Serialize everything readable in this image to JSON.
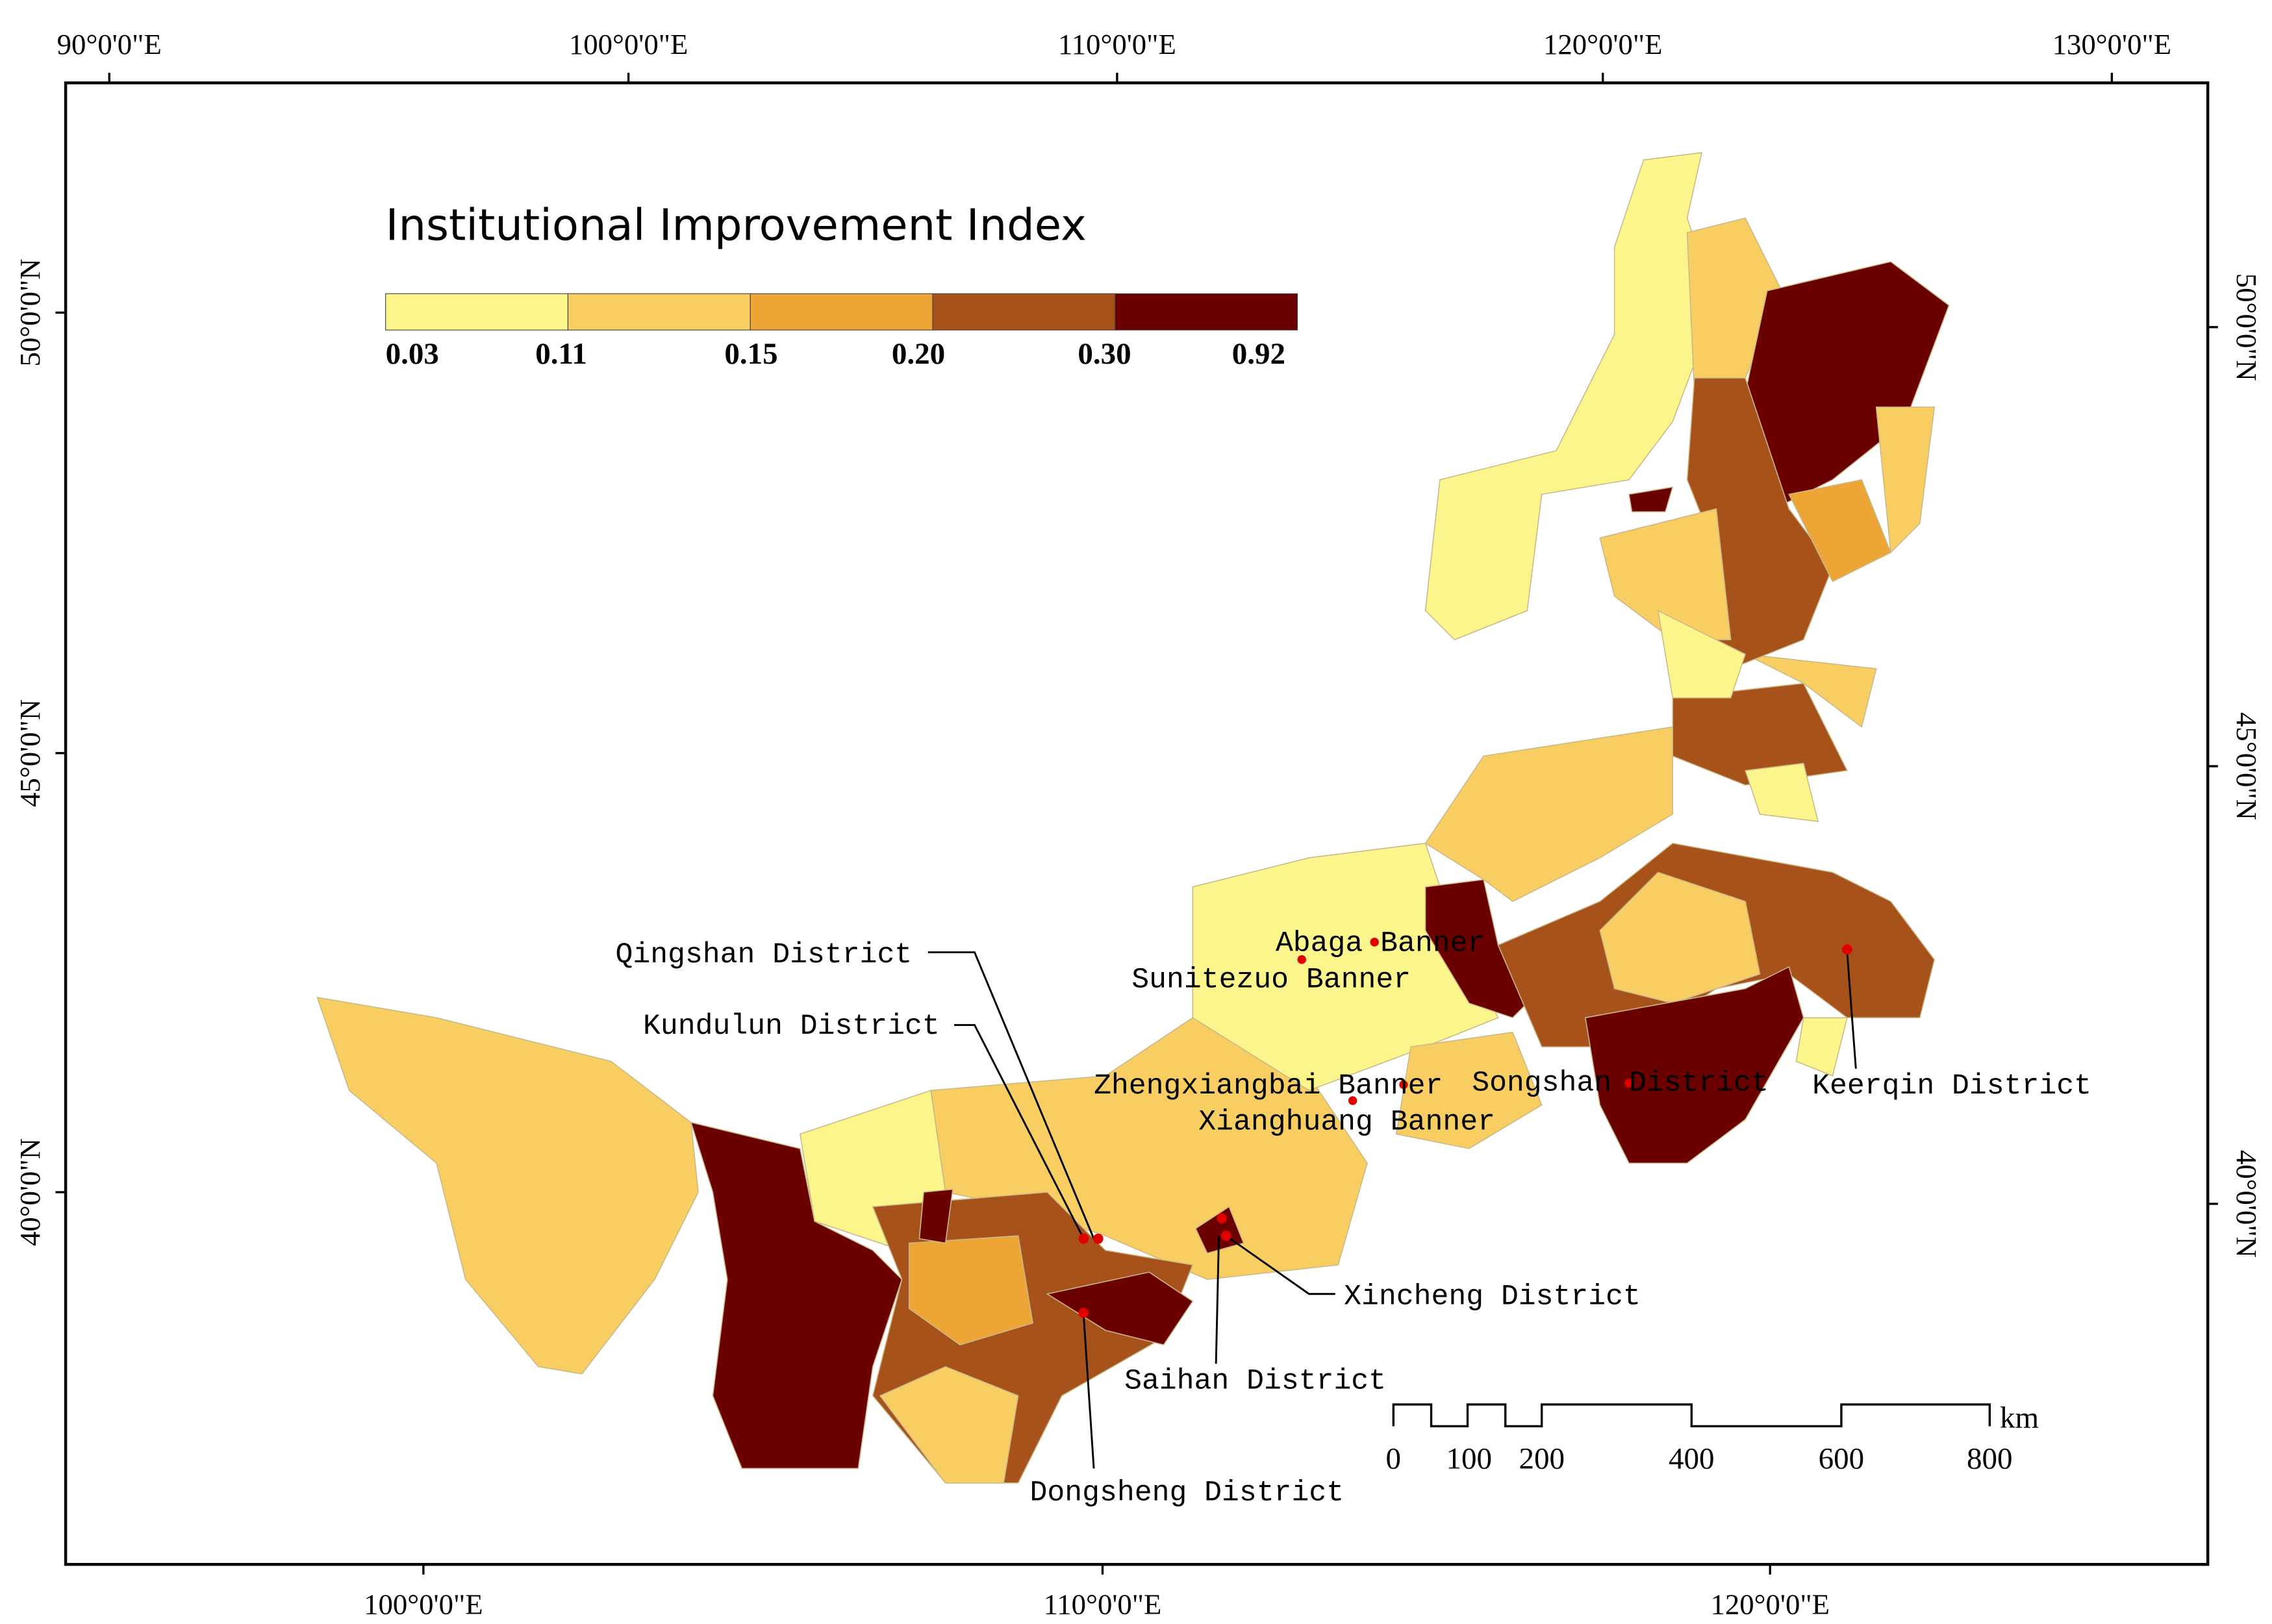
{
  "axes": {
    "top": [
      "90°0'0\"E",
      "100°0'0\"E",
      "110°0'0\"E",
      "120°0'0\"E",
      "130°0'0\"E"
    ],
    "bottom": [
      "100°0'0\"E",
      "110°0'0\"E",
      "120°0'0\"E"
    ],
    "left": [
      "50°0'0\"N",
      "45°0'0\"N",
      "40°0'0\"N"
    ],
    "right": [
      "50°0'0\"N",
      "45°0'0\"N",
      "40°0'0\"N"
    ]
  },
  "legend": {
    "title": "Institutional Improvement Index",
    "breaks": [
      "0.03",
      "0.11",
      "0.15",
      "0.20",
      "0.30",
      "0.92"
    ]
  },
  "places": [
    "Qingshan District",
    "Kundulun District",
    "Abaga Banner",
    "Sunitezuo Banner",
    "Zhengxiangbai Banner",
    "Songshan District",
    "Xianghuang Banner",
    "Keerqin District",
    "Xincheng District",
    "Saihan District",
    "Dongsheng District"
  ],
  "scale_bar": {
    "ticks": [
      "0",
      "100",
      "200",
      "400",
      "600",
      "800"
    ],
    "unit": "km"
  }
}
